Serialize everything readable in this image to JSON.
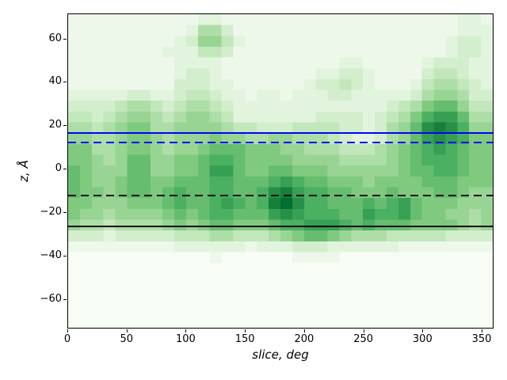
{
  "chart_data": {
    "type": "heatmap",
    "title": "",
    "xlabel": "slice, deg",
    "ylabel": "z, Å",
    "x_range": [
      0,
      360
    ],
    "y_range": [
      -73.5,
      71.5
    ],
    "x_ticks": [
      0,
      50,
      100,
      150,
      200,
      250,
      300,
      350
    ],
    "x_tick_labels": [
      "0",
      "50",
      "100",
      "150",
      "200",
      "250",
      "300",
      "350"
    ],
    "y_ticks": [
      60,
      40,
      20,
      0,
      -20,
      -40,
      -60
    ],
    "y_tick_labels": [
      "60",
      "40",
      "20",
      "0",
      "−20",
      "−40",
      "−60"
    ],
    "grid_on": false,
    "legend": "none",
    "colormap": "Greens",
    "colormap_anchors": [
      "#f7fcf5",
      "#e5f5e0",
      "#c7e9c0",
      "#a1d99b",
      "#74c476",
      "#41ab5d",
      "#238b45",
      "#006d2c",
      "#00441b"
    ],
    "grid": {
      "cols": 36,
      "rows": 29,
      "x_bin_deg": 10,
      "y_bin_angstrom": 5,
      "intensity_encoding": "one hex digit per cell, 0=lightest .. f=darkest, value = digit/15 into colormap",
      "rows_top_to_bottom": [
        "111111111112211111111111111111111221",
        "111111111125531111111111111111111222",
        "111111111236642111111111111111112332",
        "111111112224431111111111111111112332",
        "111111111222211111111112211111233322",
        "111111111233211111111223321111344322",
        "111111111333221111112334321112455432",
        "222223322344322122122233222223566533",
        "333345543455432222222222222345788644",
        "4434566545665422222223333234579aa855",
        "554567755666654433344443323568bcb966",
        "665567765666766556655543223568aba977",
        "7755677656678887776655544456789a9877",
        "776568866778998777766665555678999877",
        "876668866778aa8778877766666678899877",
        "876678877888998889a98877767777888777",
        "87767887898899889bca9988777877788766",
        "7766677789889a989cdb99888989a8777666",
        "76656666787899888aba99988a99a8776656",
        "65545555676788777899aaa9898887777656",
        "333233333444554445678876555444443333",
        "111111111222222122233322222211111111",
        "000000000000100000011110000000000000",
        "000000000000000000000000000000000000",
        "000000000000000000000000000000000000",
        "000000000000000000000000000000000000",
        "000000000000000000000000000000000000",
        "000000000000000000000000000000000000",
        "000000000000000000000000000000000000"
      ]
    },
    "hlines": [
      {
        "z": 16.7,
        "color": "#0000ff",
        "style": "solid"
      },
      {
        "z": 12.5,
        "color": "#0000ff",
        "style": "dashed"
      },
      {
        "z": -11.8,
        "color": "#000000",
        "style": "dashed"
      },
      {
        "z": -26.0,
        "color": "#000000",
        "style": "solid"
      }
    ]
  }
}
